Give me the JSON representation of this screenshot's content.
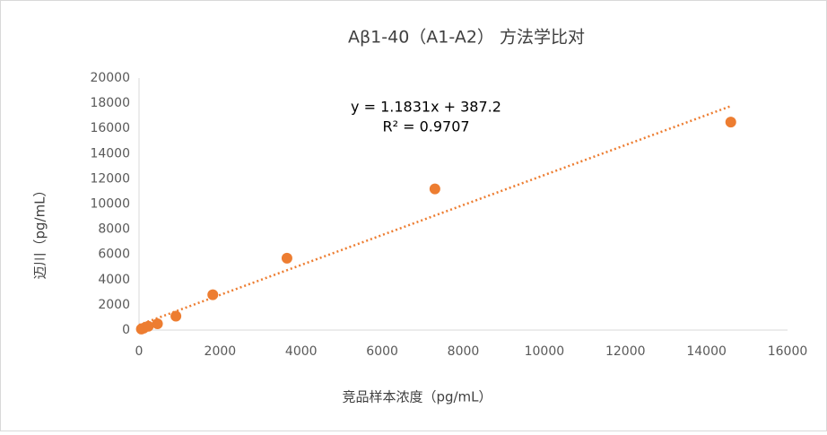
{
  "chart_data": {
    "type": "scatter",
    "title": "Aβ1-40（A1-A2） 方法学比对",
    "x_label": "竞品样本浓度（pg/mL）",
    "y_label": "迈川（pg/mL）",
    "equation": "y = 1.1831x + 387.2",
    "r_squared": "R² = 0.9707",
    "series": [
      {
        "name": "迈川",
        "color": "#ed7d31",
        "x": [
          57,
          115,
          230,
          455,
          910,
          1820,
          3650,
          7300,
          14600
        ],
        "values": [
          80,
          150,
          300,
          500,
          1100,
          2800,
          5700,
          11200,
          16500
        ]
      }
    ],
    "trendline": true,
    "xlim": [
      0,
      16000
    ],
    "xticks": [
      0,
      2000,
      4000,
      6000,
      8000,
      10000,
      12000,
      14000,
      16000
    ],
    "ylim": [
      0,
      20000
    ],
    "yticks": [
      0,
      2000,
      4000,
      6000,
      8000,
      10000,
      12000,
      14000,
      16000,
      18000,
      20000
    ]
  }
}
